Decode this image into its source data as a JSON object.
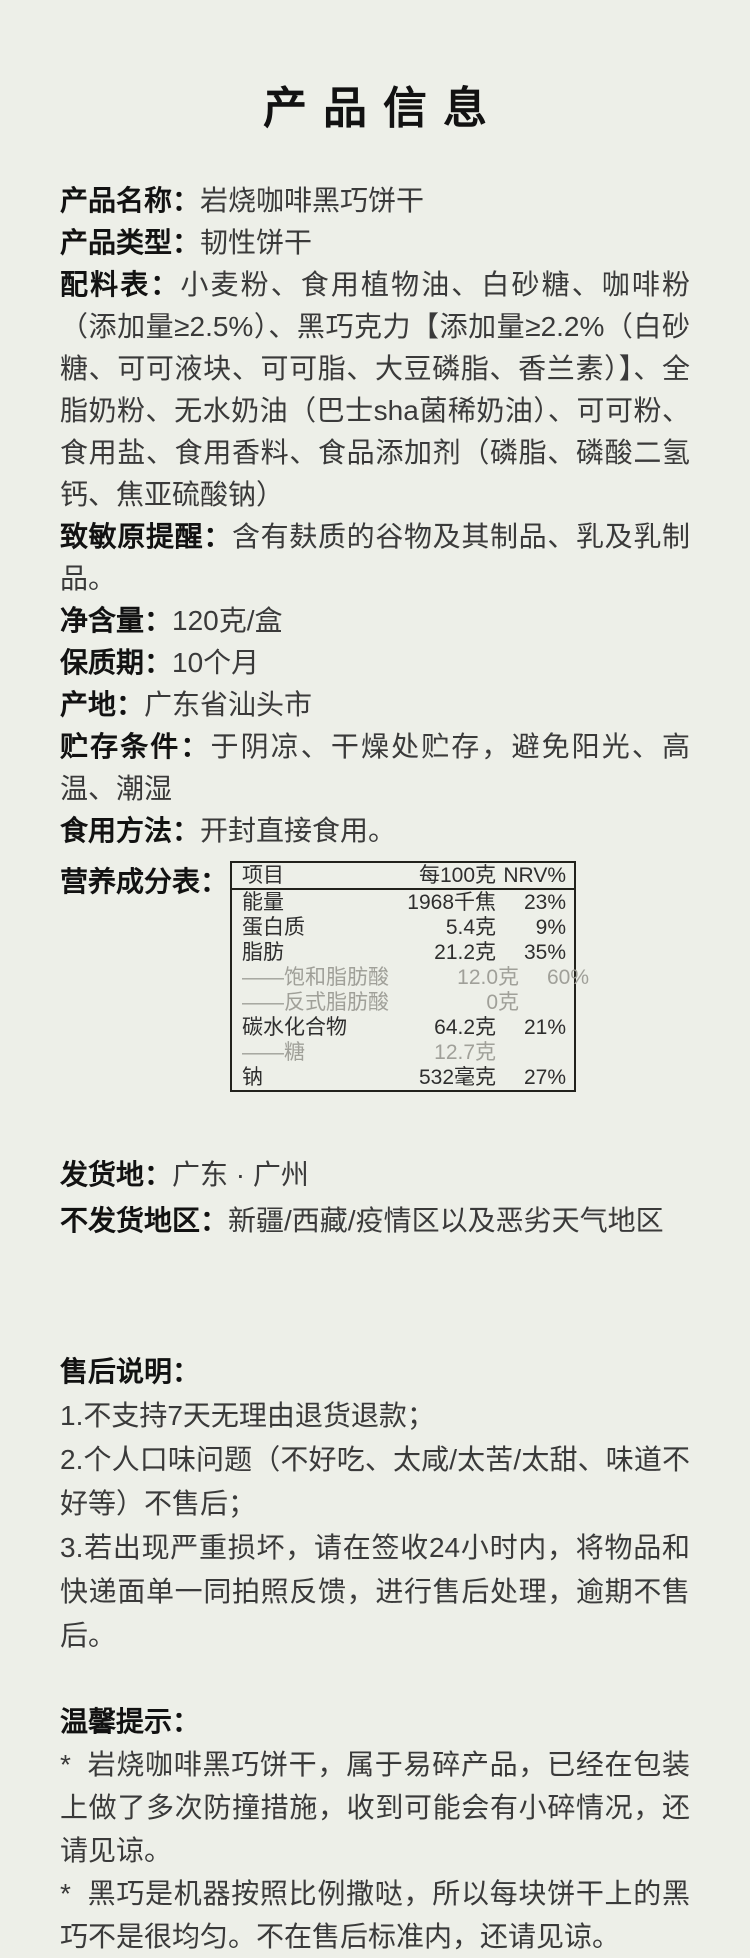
{
  "page": {
    "title": "产品信息",
    "bg_color": "#edefe8",
    "text_color": "#3a3a3a",
    "label_color": "#121212"
  },
  "product_fields": [
    {
      "label": "产品名称：",
      "value": "岩烧咖啡黑巧饼干"
    },
    {
      "label": "产品类型：",
      "value": "韧性饼干"
    },
    {
      "label": "配料表：",
      "value": "小麦粉、食用植物油、白砂糖、咖啡粉（添加量≥2.5%）、黑巧克力【添加量≥2.2%（白砂糖、可可液块、可可脂、大豆磷脂、香兰素）】、全脂奶粉、无水奶油（巴士sha菌稀奶油）、可可粉、食用盐、食用香料、食品添加剂（磷脂、磷酸二氢钙、焦亚硫酸钠）"
    },
    {
      "label": "致敏原提醒：",
      "value": "含有麸质的谷物及其制品、乳及乳制品。"
    },
    {
      "label": "净含量：",
      "value": "120克/盒"
    },
    {
      "label": "保质期：",
      "value": "10个月"
    },
    {
      "label": "产地：",
      "value": "广东省汕头市"
    },
    {
      "label": "贮存条件：",
      "value": "于阴凉、干燥处贮存，避免阳光、高温、潮湿"
    },
    {
      "label": "食用方法：",
      "value": "开封直接食用。"
    }
  ],
  "nutrition": {
    "label": "营养成分表：",
    "headers": [
      "项目",
      "每100克",
      "NRV%"
    ],
    "rows": [
      {
        "name": "能量",
        "per100g": "1968千焦",
        "nrv": "23%"
      },
      {
        "name": "蛋白质",
        "per100g": "5.4克",
        "nrv": "9%"
      },
      {
        "name": "脂肪",
        "per100g": "21.2克",
        "nrv": "35%"
      },
      {
        "name": "——饱和脂肪酸",
        "per100g": "12.0克",
        "nrv": "60%"
      },
      {
        "name": "——反式脂肪酸",
        "per100g": "0克",
        "nrv": ""
      },
      {
        "name": "碳水化合物",
        "per100g": "64.2克",
        "nrv": "21%"
      },
      {
        "name": "——糖",
        "per100g": "12.7克",
        "nrv": ""
      },
      {
        "name": "钠",
        "per100g": "532毫克",
        "nrv": "27%"
      }
    ]
  },
  "shipping_fields": [
    {
      "label": "发货地：",
      "value": "广东 · 广州"
    },
    {
      "label": "不发货地区：",
      "value": "新疆/西藏/疫情区以及恶劣天气地区"
    }
  ],
  "after_sales": {
    "title": "售后说明：",
    "items": [
      "1.不支持7天无理由退货退款；",
      "2.个人口味问题（不好吃、太咸/太苦/太甜、味道不好等）不售后；",
      "3.若出现严重损坏，请在签收24小时内，将物品和快递面单一同拍照反馈，进行售后处理，逾期不售后。"
    ]
  },
  "tips": {
    "title": "温馨提示：",
    "items": [
      {
        "bullet": "*",
        "text": "岩烧咖啡黑巧饼干，属于易碎产品，已经在包装上做了多次防撞措施，收到可能会有小碎情况，还请见谅。"
      },
      {
        "bullet": "*",
        "text": "黑巧是机器按照比例撒哒，所以每块饼干上的黑巧不是很均匀。不在售后标准内，还请见谅。"
      }
    ]
  }
}
